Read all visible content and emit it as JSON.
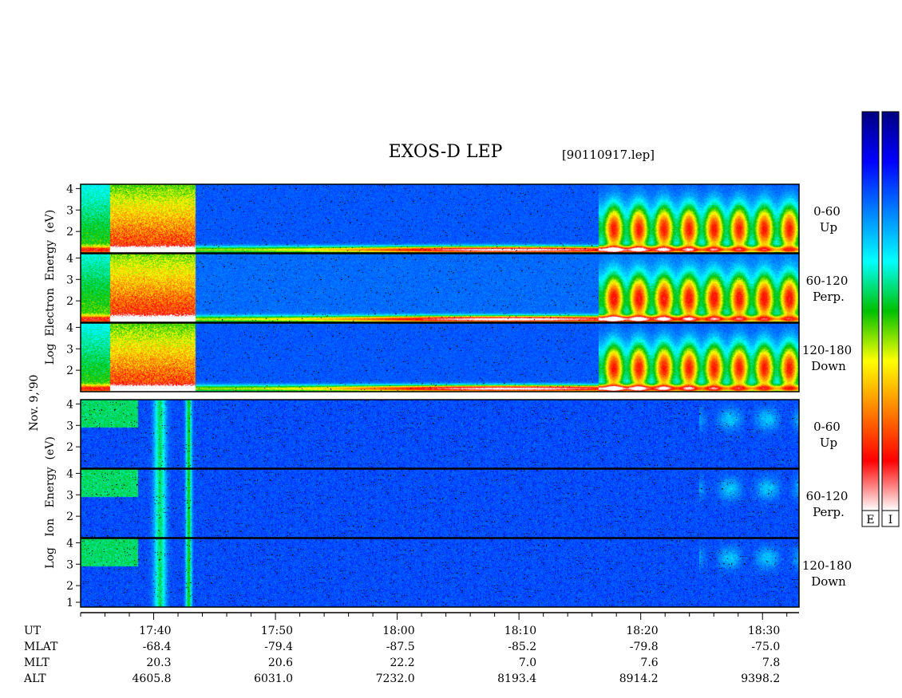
{
  "title": "EXOS-D LEP",
  "file_label": "[90110917.lep]",
  "date_label": "Nov. 9,'90",
  "electron_axis_label": "Log  Electron  Energy  (eV)",
  "ion_axis_label": "Log   Ion   Energy  (eV)",
  "colorbar_labels": [
    "E",
    "I"
  ],
  "colorbar_stops": [
    "#ffffff",
    "#ff0000",
    "#ff8000",
    "#ffff00",
    "#00c000",
    "#00ffff",
    "#0080ff",
    "#0000ff",
    "#000080"
  ],
  "chart_data": {
    "type": "heatmap",
    "y_ticks": [
      "2",
      "3",
      "4"
    ],
    "ion_bottom_extra_tick": "1",
    "panels": [
      {
        "group": "electron",
        "angle": "0-60",
        "direction": "Up"
      },
      {
        "group": "electron",
        "angle": "60-120",
        "direction": "Perp."
      },
      {
        "group": "electron",
        "angle": "120-180",
        "direction": "Down"
      },
      {
        "group": "ion",
        "angle": "0-60",
        "direction": "Up"
      },
      {
        "group": "ion",
        "angle": "60-120",
        "direction": "Perp."
      },
      {
        "group": "ion",
        "angle": "120-180",
        "direction": "Down"
      }
    ],
    "time_axis": {
      "start_min": 1054,
      "end_min": 1113
    },
    "footer": {
      "row_labels": [
        "UT",
        "MLAT",
        "MLT",
        "ALT"
      ],
      "columns": [
        {
          "UT": "17:40",
          "MLAT": "-68.4",
          "MLT": "20.3",
          "ALT": "4605.8",
          "t": 1060
        },
        {
          "UT": "17:50",
          "MLAT": "-79.4",
          "MLT": "20.6",
          "ALT": "6031.0",
          "t": 1070
        },
        {
          "UT": "18:00",
          "MLAT": "-87.5",
          "MLT": "22.2",
          "ALT": "7232.0",
          "t": 1080
        },
        {
          "UT": "18:10",
          "MLAT": "-85.2",
          "MLT": "7.0",
          "ALT": "8193.4",
          "t": 1090
        },
        {
          "UT": "18:20",
          "MLAT": "-79.8",
          "MLT": "7.6",
          "ALT": "8914.2",
          "t": 1100
        },
        {
          "UT": "18:30",
          "MLAT": "-75.0",
          "MLT": "7.8",
          "ALT": "9398.2",
          "t": 1110
        }
      ]
    }
  }
}
